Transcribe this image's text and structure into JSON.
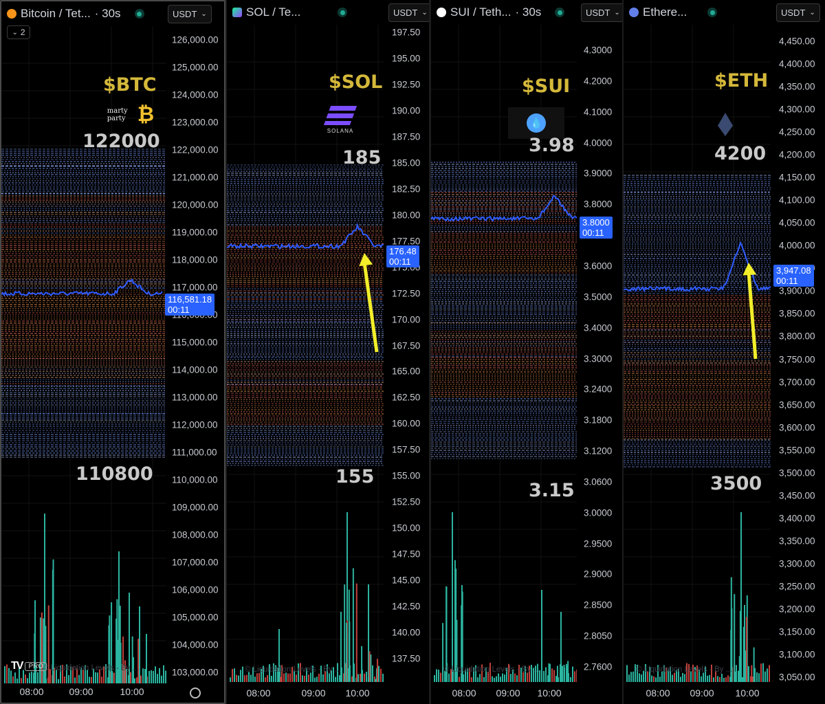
{
  "panels": [
    {
      "id": "btc",
      "title": "Bitcoin / Tet...",
      "interval": "· 30s",
      "quote": "USDT",
      "collapse_count": "2",
      "ticker": "$BTC",
      "level_high": "122000",
      "level_low": "110800",
      "price": "116,581.18",
      "countdown": "00:11",
      "axis": [
        "126,000.00",
        "125,000.00",
        "124,000.00",
        "123,000.00",
        "122,000.00",
        "121,000.00",
        "120,000.00",
        "119,000.00",
        "118,000.00",
        "117,000.00",
        "116,000.00",
        "115,000.00",
        "114,000.00",
        "113,000.00",
        "112,000.00",
        "111,000.00",
        "110,000.00",
        "109,000.00",
        "108,000.00",
        "107,000.00",
        "106,000.00",
        "105,000.00",
        "104,000.00",
        "103,000.00"
      ],
      "times": [
        "08:00",
        "09:00",
        "10:00"
      ],
      "watermark": "© Liquidation Levels - By ...",
      "logo_text": "marty party",
      "tv_badge": "PRO"
    },
    {
      "id": "sol",
      "title": "SOL / Te...",
      "interval": "",
      "quote": "USDT",
      "ticker": "$SOL",
      "level_high": "185",
      "level_low": "155",
      "price": "176.48",
      "countdown": "00:11",
      "axis": [
        "197.50",
        "195.00",
        "192.50",
        "190.00",
        "187.50",
        "185.00",
        "182.50",
        "180.00",
        "177.50",
        "175.00",
        "172.50",
        "170.00",
        "167.50",
        "165.00",
        "162.50",
        "160.00",
        "157.50",
        "155.00",
        "152.50",
        "150.00",
        "147.50",
        "145.00",
        "142.50",
        "140.00",
        "137.50"
      ],
      "times": [
        "08:00",
        "09:00",
        "10:00"
      ],
      "watermark": "© Liquidation Levels - By ...",
      "logo_text": "SOLANA"
    },
    {
      "id": "sui",
      "title": "SUI / Teth...",
      "interval": "· 30s",
      "quote": "USDT",
      "ticker": "$SUI",
      "level_high": "3.98",
      "level_low": "3.15",
      "price": "3.8000",
      "countdown": "00:11",
      "axis": [
        "4.3000",
        "4.2000",
        "4.1000",
        "4.0000",
        "3.9000",
        "3.8000",
        "3.7000",
        "3.6000",
        "3.5000",
        "3.4000",
        "3.3000",
        "3.2400",
        "3.1800",
        "3.1200",
        "3.0600",
        "3.0000",
        "2.9500",
        "2.9000",
        "2.8500",
        "2.8050",
        "2.7600"
      ],
      "times": [
        "08:00",
        "09:00",
        "10:00"
      ],
      "watermark": "© Liquidation Levels - By ..."
    },
    {
      "id": "eth",
      "title": "Ethere...",
      "interval": "",
      "quote": "USDT",
      "ticker": "$ETH",
      "level_high": "4200",
      "level_low": "3500",
      "price": "3,947.08",
      "countdown": "00:11",
      "axis": [
        "4,450.00",
        "4,400.00",
        "4,350.00",
        "4,300.00",
        "4,250.00",
        "4,200.00",
        "4,150.00",
        "4,100.00",
        "4,050.00",
        "4,000.00",
        "3,950.00",
        "3,900.00",
        "3,850.00",
        "3,800.00",
        "3,750.00",
        "3,700.00",
        "3,650.00",
        "3,600.00",
        "3,550.00",
        "3,500.00",
        "3,450.00",
        "3,400.00",
        "3,350.00",
        "3,300.00",
        "3,250.00",
        "3,200.00",
        "3,150.00",
        "3,100.00",
        "3,050.00"
      ],
      "times": [
        "08:00",
        "09:00",
        "10:00"
      ],
      "watermark": "© Liquidation Levels - By ..."
    }
  ],
  "colors": {
    "price_line": "#2f5bff",
    "band_blue": "#6d8ee6",
    "band_orange": "#e08a4a",
    "band_red": "#e0675a",
    "volume_teal": "#2bb5a0",
    "volume_red": "#c2413d",
    "ticker_gold": "#d4b83a",
    "arrow_yellow": "#f2ee2a"
  }
}
